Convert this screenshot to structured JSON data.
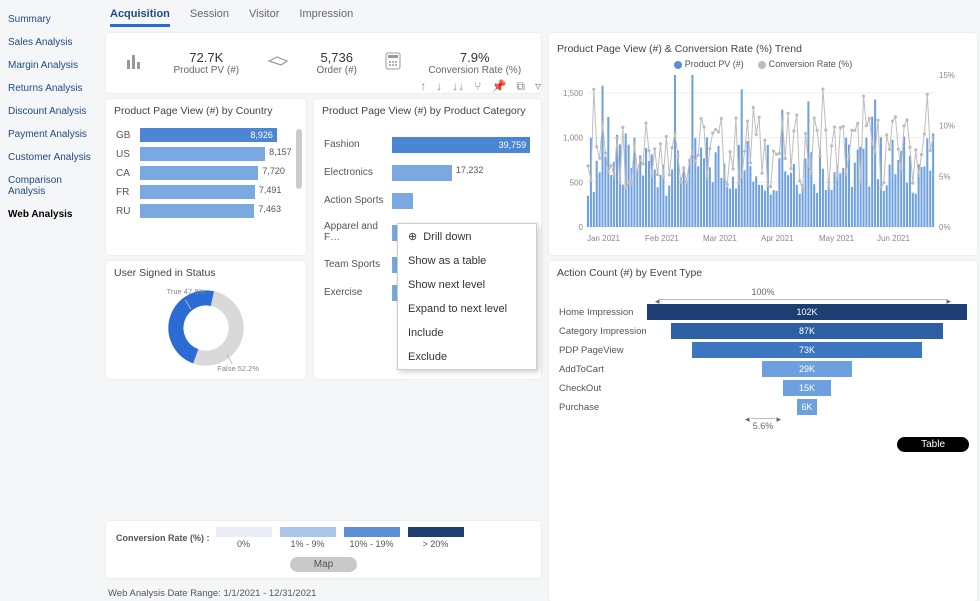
{
  "sidebar": {
    "items": [
      {
        "label": "Summary"
      },
      {
        "label": "Sales Analysis"
      },
      {
        "label": "Margin Analysis"
      },
      {
        "label": "Returns Analysis"
      },
      {
        "label": "Discount Analysis"
      },
      {
        "label": "Payment Analysis"
      },
      {
        "label": "Customer Analysis"
      },
      {
        "label": "Comparison Analysis"
      },
      {
        "label": "Web Analysis"
      }
    ],
    "active_index": 8
  },
  "tabs": {
    "items": [
      {
        "label": "Acquisition"
      },
      {
        "label": "Session"
      },
      {
        "label": "Visitor"
      },
      {
        "label": "Impression"
      }
    ],
    "active_index": 0
  },
  "kpis": [
    {
      "icon": "bar-chart-icon",
      "value": "72.7K",
      "label": "Product PV (#)"
    },
    {
      "icon": "hand-icon",
      "value": "5,736",
      "label": "Order (#)"
    },
    {
      "icon": "calculator-icon",
      "value": "7.9%",
      "label": "Conversion Rate (%)"
    }
  ],
  "country_chart": {
    "title": "Product Page View (#) by Country",
    "type": "bar-horizontal",
    "max": 9000,
    "bar_color": "#7aa8e0",
    "first_bar_color": "#4a86d4",
    "rows": [
      {
        "label": "GB",
        "value": 8926,
        "text": "8,926",
        "inside": true
      },
      {
        "label": "US",
        "value": 8157,
        "text": "8,157",
        "inside": false
      },
      {
        "label": "CA",
        "value": 7720,
        "text": "7,720",
        "inside": false
      },
      {
        "label": "FR",
        "value": 7491,
        "text": "7,491",
        "inside": false
      },
      {
        "label": "RU",
        "value": 7463,
        "text": "7,463",
        "inside": false
      }
    ]
  },
  "category_chart": {
    "title": "Product Page View (#) by Product Category",
    "type": "bar-horizontal",
    "max": 40000,
    "bar_color": "#7aa8e0",
    "first_bar_color": "#4a86d4",
    "rows": [
      {
        "label": "Fashion",
        "value": 39759,
        "text": "39,759",
        "inside": true
      },
      {
        "label": "Electronics",
        "value": 17232,
        "text": "17,232",
        "inside": false
      },
      {
        "label": "Action Sports",
        "value": 6000,
        "text": "",
        "inside": false
      },
      {
        "label": "Apparel and F…",
        "value": 4800,
        "text": "",
        "inside": false
      },
      {
        "label": "Team Sports",
        "value": 3600,
        "text": "",
        "inside": false
      },
      {
        "label": "Exercise",
        "value": 2914,
        "text": "2,914",
        "inside": false
      }
    ],
    "toolbar_icons": [
      "up-icon",
      "down-icon",
      "double-down-icon",
      "fork-icon",
      "pin-icon",
      "copy-icon",
      "filter-icon"
    ]
  },
  "context_menu": {
    "items": [
      {
        "label": "Drill down",
        "icon": "drill-icon"
      },
      {
        "label": "Show as a table"
      },
      {
        "label": "Show next level"
      },
      {
        "label": "Expand to next level"
      },
      {
        "label": "Include"
      },
      {
        "label": "Exclude"
      }
    ]
  },
  "donut": {
    "title": "User Signed in Status",
    "true_pct": 47.8,
    "true_label": "True 47.8%",
    "true_color": "#2b6cd4",
    "false_pct": 52.2,
    "false_label": "False 52.2%",
    "false_color": "#d9d9d9"
  },
  "conv_legend": {
    "title": "Conversion Rate (%) :",
    "buckets": [
      {
        "label": "0%",
        "color": "#e9eef6"
      },
      {
        "label": "1% - 9%",
        "color": "#a9c6ea"
      },
      {
        "label": "10% - 19%",
        "color": "#5a8fd6"
      },
      {
        "label": "> 20%",
        "color": "#1d3e73"
      }
    ],
    "map_label": "Map"
  },
  "trend": {
    "title": "Product Page View (#) & Conversion Rate (%) Trend",
    "legend": [
      {
        "label": "Product PV (#)",
        "color": "#5a8fd6"
      },
      {
        "label": "Conversion Rate (%)",
        "color": "#bdbdbd"
      }
    ],
    "y_left": {
      "max": 1700,
      "ticks": [
        0,
        500,
        1000,
        1500
      ]
    },
    "y_right": {
      "max": 16,
      "ticks": [
        "0%",
        "5%",
        "10%",
        "15%"
      ]
    },
    "x_labels": [
      "Jan 2021",
      "Feb 2021",
      "Mar 2021",
      "Apr 2021",
      "May 2021",
      "Jun 2021"
    ],
    "background": "#ffffff"
  },
  "funnel": {
    "title": "Action Count (#) by Event Type",
    "top_label": "100%",
    "bottom_label": "5.6%",
    "max_width": 320,
    "rows": [
      {
        "label": "Home Impression",
        "value": 102000,
        "text": "102K",
        "rel": 1.0,
        "color": "#1d3e73"
      },
      {
        "label": "Category Impression",
        "value": 87000,
        "text": "87K",
        "rel": 0.85,
        "color": "#2e5fa3"
      },
      {
        "label": "PDP PageView",
        "value": 73000,
        "text": "73K",
        "rel": 0.72,
        "color": "#3d76c1"
      },
      {
        "label": "AddToCart",
        "value": 29000,
        "text": "29K",
        "rel": 0.28,
        "color": "#6da0df"
      },
      {
        "label": "CheckOut",
        "value": 15000,
        "text": "15K",
        "rel": 0.15,
        "color": "#6da0df"
      },
      {
        "label": "Purchase",
        "value": 6000,
        "text": "6K",
        "rel": 0.06,
        "color": "#6da0df"
      }
    ],
    "table_label": "Table"
  },
  "date_range": "Web Analysis Date Range: 1/1/2021 - 12/31/2021"
}
